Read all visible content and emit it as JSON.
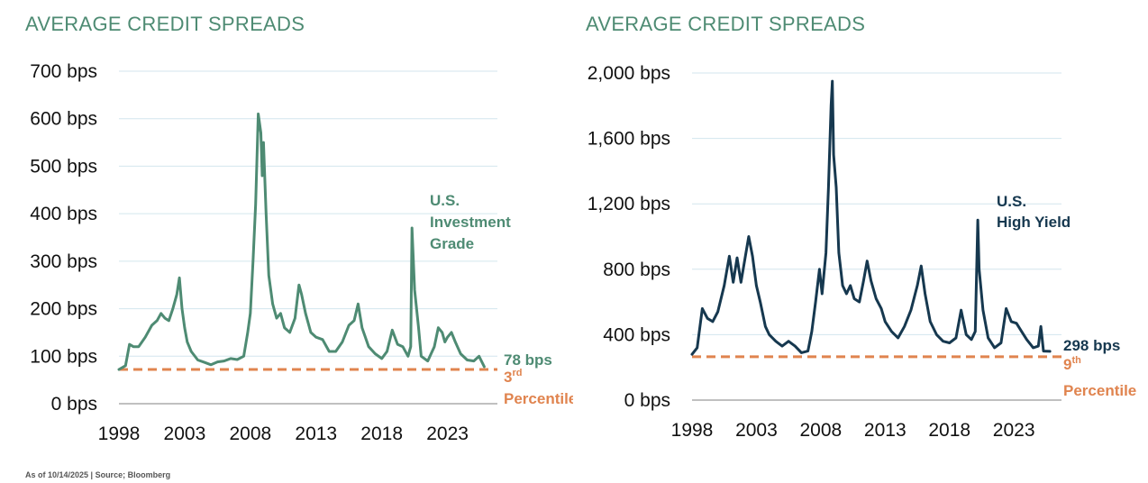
{
  "footnote": "As of 10/14/2025 | Source; Bloomberg",
  "colors": {
    "ig_series": "#4e8b73",
    "hy_series": "#16384f",
    "percentile_line": "#e0844f",
    "gridline": "#d3e6ee",
    "axis_line": "#9a9a9a",
    "title": "#4e8b73"
  },
  "chart_data": [
    {
      "type": "line",
      "title": "AVERAGE CREDIT SPREADS",
      "series": [
        {
          "name": "U.S. Investment Grade",
          "label_lines": [
            "U.S.",
            "Investment",
            "Grade"
          ],
          "x": [
            1998.0,
            1998.5,
            1998.8,
            1999.1,
            1999.5,
            2000.0,
            2000.5,
            2000.9,
            2001.2,
            2001.5,
            2001.8,
            2002.1,
            2002.4,
            2002.6,
            2002.8,
            2003.0,
            2003.2,
            2003.5,
            2004.0,
            2004.5,
            2005.0,
            2005.5,
            2006.0,
            2006.5,
            2007.0,
            2007.5,
            2007.8,
            2008.0,
            2008.2,
            2008.4,
            2008.6,
            2008.8,
            2008.9,
            2009.0,
            2009.2,
            2009.4,
            2009.7,
            2010.0,
            2010.3,
            2010.6,
            2011.0,
            2011.4,
            2011.7,
            2011.9,
            2012.2,
            2012.6,
            2013.0,
            2013.5,
            2014.0,
            2014.5,
            2015.0,
            2015.5,
            2015.9,
            2016.2,
            2016.5,
            2017.0,
            2017.5,
            2018.0,
            2018.4,
            2018.8,
            2019.2,
            2019.6,
            2020.0,
            2020.2,
            2020.3,
            2020.5,
            2020.8,
            2021.0,
            2021.5,
            2022.0,
            2022.3,
            2022.6,
            2022.8,
            2023.0,
            2023.3,
            2023.6,
            2024.0,
            2024.5,
            2025.0,
            2025.4,
            2025.8
          ],
          "values": [
            72,
            80,
            125,
            120,
            120,
            140,
            165,
            175,
            190,
            180,
            175,
            200,
            230,
            265,
            200,
            160,
            130,
            110,
            92,
            87,
            82,
            88,
            90,
            95,
            93,
            100,
            150,
            190,
            300,
            420,
            610,
            570,
            480,
            550,
            400,
            270,
            210,
            180,
            190,
            160,
            150,
            180,
            250,
            230,
            190,
            150,
            140,
            135,
            110,
            110,
            130,
            165,
            175,
            210,
            160,
            120,
            105,
            95,
            110,
            155,
            125,
            120,
            100,
            120,
            370,
            240,
            160,
            100,
            90,
            120,
            160,
            150,
            130,
            140,
            150,
            130,
            105,
            92,
            90,
            100,
            78
          ]
        }
      ],
      "end_label": "78 bps",
      "percentile_value": 72,
      "percentile_ordinal": "3",
      "percentile_suffix": "rd",
      "percentile_word": "Percentile",
      "y_ticks": [
        0,
        100,
        200,
        300,
        400,
        500,
        600,
        700
      ],
      "y_tick_labels": [
        "0 bps",
        "100 bps",
        "200 bps",
        "300 bps",
        "400 bps",
        "500 bps",
        "600 bps",
        "700 bps"
      ],
      "x_ticks": [
        1998,
        2003,
        2008,
        2013,
        2018,
        2023
      ],
      "ylim": [
        0,
        700
      ],
      "xlim": [
        1998,
        2026.8
      ],
      "grid": true,
      "xlabel": "",
      "ylabel": ""
    },
    {
      "type": "line",
      "title": "AVERAGE CREDIT SPREADS",
      "series": [
        {
          "name": "U.S. High Yield",
          "label_lines": [
            "U.S.",
            "High Yield"
          ],
          "x": [
            1998.0,
            1998.4,
            1998.8,
            1999.2,
            1999.6,
            2000.0,
            2000.5,
            2000.9,
            2001.2,
            2001.5,
            2001.8,
            2002.1,
            2002.4,
            2002.7,
            2003.0,
            2003.3,
            2003.7,
            2004.0,
            2004.5,
            2005.0,
            2005.5,
            2006.0,
            2006.5,
            2007.0,
            2007.3,
            2007.6,
            2007.9,
            2008.1,
            2008.4,
            2008.6,
            2008.8,
            2008.9,
            2009.0,
            2009.2,
            2009.4,
            2009.7,
            2010.0,
            2010.3,
            2010.6,
            2011.0,
            2011.3,
            2011.6,
            2011.9,
            2012.3,
            2012.7,
            2013.0,
            2013.5,
            2014.0,
            2014.5,
            2015.0,
            2015.5,
            2015.8,
            2016.1,
            2016.5,
            2017.0,
            2017.5,
            2018.0,
            2018.5,
            2018.9,
            2019.3,
            2019.7,
            2020.0,
            2020.2,
            2020.3,
            2020.6,
            2021.0,
            2021.5,
            2022.0,
            2022.4,
            2022.8,
            2023.2,
            2023.6,
            2024.0,
            2024.5,
            2024.9,
            2025.1,
            2025.3,
            2025.8
          ],
          "values": [
            280,
            320,
            560,
            500,
            480,
            540,
            700,
            880,
            720,
            870,
            720,
            860,
            1000,
            880,
            700,
            600,
            450,
            400,
            360,
            330,
            360,
            330,
            290,
            300,
            420,
            600,
            800,
            650,
            900,
            1300,
            1800,
            1950,
            1500,
            1300,
            900,
            700,
            650,
            700,
            620,
            600,
            720,
            850,
            730,
            620,
            560,
            480,
            420,
            380,
            450,
            550,
            700,
            820,
            650,
            480,
            400,
            360,
            350,
            380,
            550,
            400,
            370,
            420,
            1100,
            800,
            550,
            380,
            320,
            350,
            560,
            480,
            470,
            420,
            370,
            320,
            330,
            450,
            300,
            298
          ]
        }
      ],
      "end_label": "298 bps",
      "percentile_value": 265,
      "percentile_ordinal": "9",
      "percentile_suffix": "th",
      "percentile_word": "Percentile",
      "y_ticks": [
        0,
        400,
        800,
        1200,
        1600,
        2000
      ],
      "y_tick_labels": [
        "0 bps",
        "400 bps",
        "800 bps",
        "1,200 bps",
        "1,600 bps",
        "2,000 bps"
      ],
      "x_ticks": [
        1998,
        2003,
        2008,
        2013,
        2018,
        2023
      ],
      "ylim": [
        0,
        2000
      ],
      "xlim": [
        1998,
        2026.7
      ],
      "grid": true,
      "xlabel": "",
      "ylabel": ""
    }
  ]
}
